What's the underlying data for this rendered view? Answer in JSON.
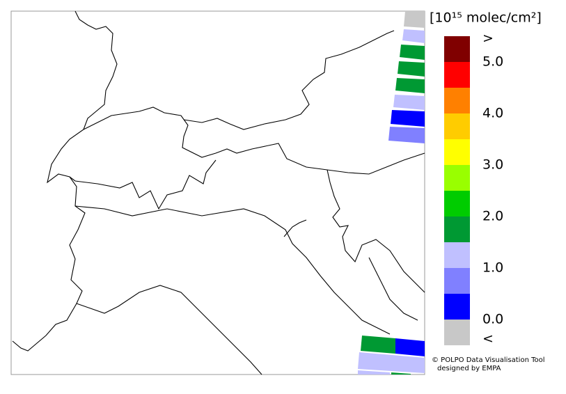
{
  "legend": {
    "unit": "[10¹⁵ molec/cm²]",
    "lim": [
      0,
      5
    ],
    "ticks": [
      {
        "value": 0,
        "label": "0.0"
      },
      {
        "value": 1,
        "label": "1.0"
      },
      {
        "value": 2,
        "label": "2.0"
      },
      {
        "value": 3,
        "label": "3.0"
      },
      {
        "value": 4,
        "label": "4.0"
      },
      {
        "value": 5,
        "label": "5.0"
      }
    ],
    "colors": [
      "#0000ff",
      "#8080ff",
      "#c0c0ff",
      "#009933",
      "#00cc00",
      "#99ff00",
      "#ffff00",
      "#ffcc00",
      "#ff8000",
      "#ff0000"
    ],
    "under": {
      "label": "<",
      "color": "#c8c8c8"
    },
    "over": {
      "label": ">",
      "color": "#800000"
    }
  },
  "credit": {
    "line1": "© POLPO Data Visualisation Tool",
    "line2": "designed by EMPA"
  }
}
